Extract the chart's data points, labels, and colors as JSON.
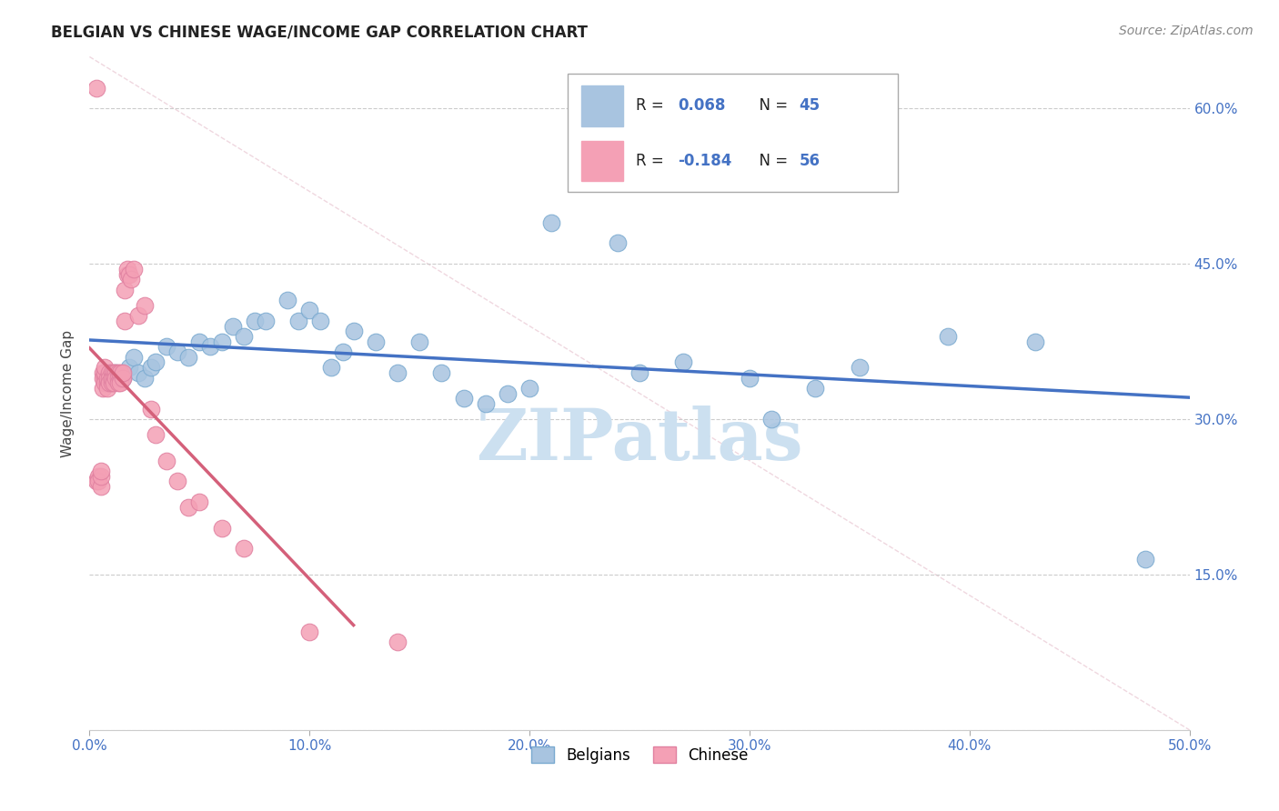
{
  "title": "BELGIAN VS CHINESE WAGE/INCOME GAP CORRELATION CHART",
  "source": "Source: ZipAtlas.com",
  "ylabel": "Wage/Income Gap",
  "xlim": [
    0.0,
    0.5
  ],
  "ylim": [
    0.0,
    0.65
  ],
  "yticks": [
    0.0,
    0.15,
    0.3,
    0.45,
    0.6
  ],
  "right_ytick_labels": [
    "",
    "15.0%",
    "30.0%",
    "45.0%",
    "60.0%"
  ],
  "blue_line_color": "#4472c4",
  "pink_line_color": "#d4607a",
  "blue_scatter_color": "#a8c4e0",
  "pink_scatter_color": "#f4a0b5",
  "blue_edge_color": "#7aaad0",
  "pink_edge_color": "#e080a0",
  "watermark": "ZIPatlas",
  "watermark_color": "#cce0f0",
  "blue_points_x": [
    0.008,
    0.012,
    0.015,
    0.018,
    0.02,
    0.022,
    0.025,
    0.028,
    0.03,
    0.035,
    0.04,
    0.045,
    0.05,
    0.055,
    0.06,
    0.065,
    0.07,
    0.075,
    0.08,
    0.09,
    0.095,
    0.1,
    0.105,
    0.11,
    0.115,
    0.12,
    0.13,
    0.14,
    0.15,
    0.16,
    0.17,
    0.18,
    0.19,
    0.2,
    0.21,
    0.24,
    0.25,
    0.27,
    0.3,
    0.31,
    0.33,
    0.35,
    0.39,
    0.43,
    0.48
  ],
  "blue_points_y": [
    0.335,
    0.345,
    0.34,
    0.35,
    0.36,
    0.345,
    0.34,
    0.35,
    0.355,
    0.37,
    0.365,
    0.36,
    0.375,
    0.37,
    0.375,
    0.39,
    0.38,
    0.395,
    0.395,
    0.415,
    0.395,
    0.405,
    0.395,
    0.35,
    0.365,
    0.385,
    0.375,
    0.345,
    0.375,
    0.345,
    0.32,
    0.315,
    0.325,
    0.33,
    0.49,
    0.47,
    0.345,
    0.355,
    0.34,
    0.3,
    0.33,
    0.35,
    0.38,
    0.375,
    0.165
  ],
  "pink_points_x": [
    0.003,
    0.003,
    0.004,
    0.004,
    0.005,
    0.005,
    0.005,
    0.006,
    0.006,
    0.006,
    0.007,
    0.007,
    0.007,
    0.007,
    0.008,
    0.008,
    0.008,
    0.009,
    0.009,
    0.009,
    0.01,
    0.01,
    0.01,
    0.01,
    0.011,
    0.011,
    0.011,
    0.012,
    0.012,
    0.013,
    0.013,
    0.013,
    0.014,
    0.014,
    0.014,
    0.015,
    0.015,
    0.016,
    0.016,
    0.017,
    0.017,
    0.018,
    0.019,
    0.02,
    0.022,
    0.025,
    0.028,
    0.03,
    0.035,
    0.04,
    0.045,
    0.05,
    0.06,
    0.07,
    0.1,
    0.14
  ],
  "pink_points_y": [
    0.62,
    0.24,
    0.245,
    0.24,
    0.235,
    0.245,
    0.25,
    0.345,
    0.34,
    0.33,
    0.34,
    0.335,
    0.345,
    0.35,
    0.335,
    0.34,
    0.33,
    0.345,
    0.34,
    0.335,
    0.345,
    0.34,
    0.335,
    0.34,
    0.345,
    0.34,
    0.335,
    0.345,
    0.34,
    0.345,
    0.34,
    0.335,
    0.34,
    0.345,
    0.335,
    0.34,
    0.345,
    0.395,
    0.425,
    0.44,
    0.445,
    0.44,
    0.435,
    0.445,
    0.4,
    0.41,
    0.31,
    0.285,
    0.26,
    0.24,
    0.215,
    0.22,
    0.195,
    0.175,
    0.095,
    0.085
  ],
  "dashed_line_x": [
    0.0,
    0.5
  ],
  "dashed_line_y": [
    0.65,
    0.0
  ],
  "pink_trend_x": [
    0.0,
    0.12
  ],
  "blue_trend_x": [
    0.0,
    0.5
  ]
}
